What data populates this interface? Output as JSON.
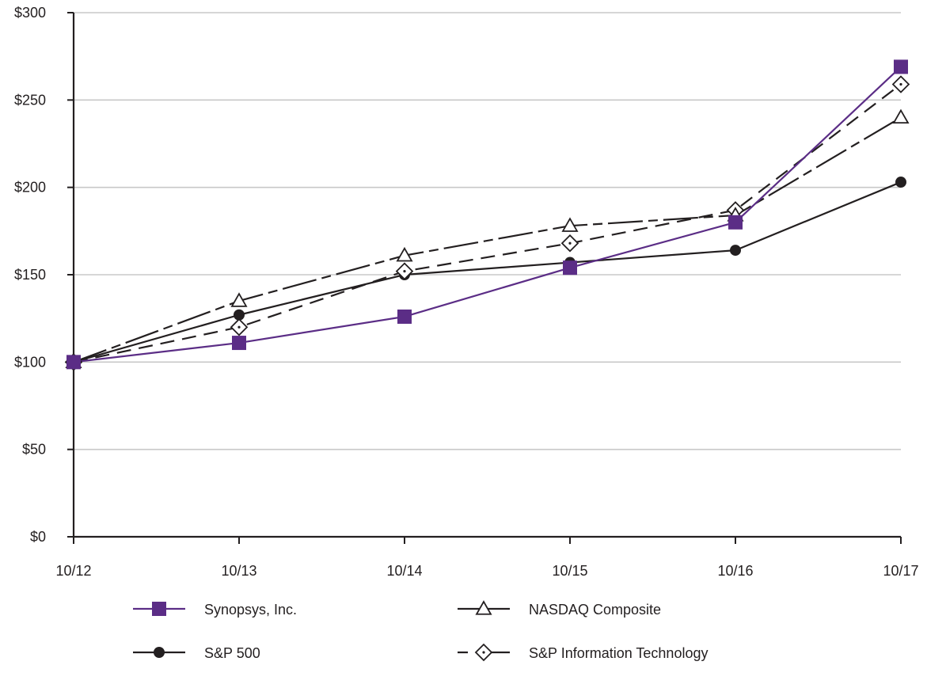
{
  "chart_data": {
    "type": "line",
    "title": "",
    "xlabel": "",
    "ylabel": "",
    "categories": [
      "10/12",
      "10/13",
      "10/14",
      "10/15",
      "10/16",
      "10/17"
    ],
    "ylim": [
      0,
      300
    ],
    "y_ticks": [
      0,
      50,
      100,
      150,
      200,
      250,
      300
    ],
    "y_tick_labels": [
      "$0",
      "$50",
      "$100",
      "$150",
      "$200",
      "$250",
      "$300"
    ],
    "grid": "horizontal",
    "legend_position": "bottom",
    "series": [
      {
        "name": "Synopsys, Inc.",
        "values": [
          100,
          111,
          126,
          154,
          180,
          269
        ],
        "color": "#5b2d86",
        "marker": "square",
        "line_style": "solid"
      },
      {
        "name": "NASDAQ Composite",
        "values": [
          100,
          135,
          161,
          178,
          184,
          240
        ],
        "color": "#231f20",
        "marker": "triangle-open",
        "line_style": "long-dash-short-dash"
      },
      {
        "name": "S&P 500",
        "values": [
          100,
          127,
          150,
          157,
          164,
          203
        ],
        "color": "#231f20",
        "marker": "circle",
        "line_style": "solid"
      },
      {
        "name": "S&P Information Technology",
        "values": [
          100,
          120,
          152,
          168,
          187,
          259
        ],
        "color": "#231f20",
        "marker": "diamond-open",
        "line_style": "dashed"
      }
    ]
  }
}
